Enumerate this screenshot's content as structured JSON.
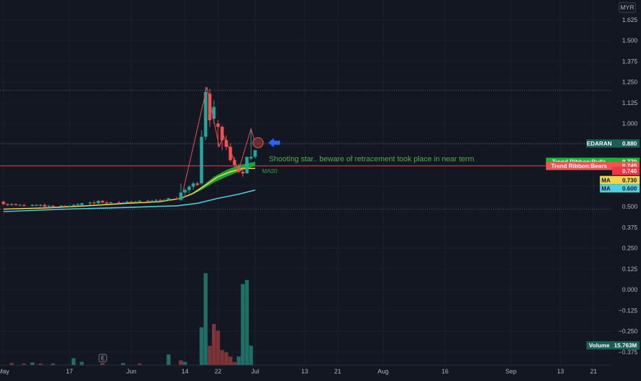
{
  "currency": "MYR",
  "colors": {
    "background": "#131722",
    "up": "#26a69a",
    "down": "#ef5350",
    "ribbon": "#1bb33a",
    "ma20": "#f0d44a",
    "ma": "#4dd0e1",
    "annotation": "#4caf50",
    "arrow": "#2962ff",
    "hline": "#f23645",
    "vol_up": "#1f6e68",
    "vol_down": "#7f3438"
  },
  "chart_data": {
    "type": "candlestick",
    "symbol": "EDARAN",
    "y_ticks": [
      1.625,
      1.5,
      1.375,
      1.25,
      1.125,
      1.0,
      0.875,
      0.75,
      0.625,
      0.5,
      0.375,
      0.25,
      0.125,
      0.0,
      -0.125,
      -0.25,
      -0.375
    ],
    "y_tick_labels": [
      "1.625",
      "1.500",
      "1.375",
      "1.250",
      "1.125",
      "1.000",
      "0.875",
      "0.750",
      "0.625",
      "0.500",
      "0.375",
      "0.250",
      "0.125",
      "0.000",
      "−0.125",
      "−0.250",
      "−0.375"
    ],
    "x_ticks": [
      {
        "label": "May",
        "day": 0
      },
      {
        "label": "17",
        "day": 16
      },
      {
        "label": "Jun",
        "day": 31
      },
      {
        "label": "14",
        "day": 44
      },
      {
        "label": "22",
        "day": 52
      },
      {
        "label": "Jul",
        "day": 61
      },
      {
        "label": "13",
        "day": 73
      },
      {
        "label": "21",
        "day": 81
      },
      {
        "label": "Aug",
        "day": 92
      },
      {
        "label": "16",
        "day": 107
      },
      {
        "label": "Sep",
        "day": 123
      },
      {
        "label": "13",
        "day": 135
      },
      {
        "label": "21",
        "day": 143
      }
    ],
    "candles": [
      {
        "day": 0,
        "o": 0.53,
        "h": 0.535,
        "l": 0.51,
        "c": 0.515
      },
      {
        "day": 1,
        "o": 0.515,
        "h": 0.52,
        "l": 0.505,
        "c": 0.51
      },
      {
        "day": 2,
        "o": 0.51,
        "h": 0.52,
        "l": 0.505,
        "c": 0.515
      },
      {
        "day": 3,
        "o": 0.515,
        "h": 0.52,
        "l": 0.505,
        "c": 0.51
      },
      {
        "day": 4,
        "o": 0.51,
        "h": 0.515,
        "l": 0.505,
        "c": 0.51
      },
      {
        "day": 5,
        "o": 0.51,
        "h": 0.515,
        "l": 0.5,
        "c": 0.505
      },
      {
        "day": 7,
        "o": 0.505,
        "h": 0.515,
        "l": 0.5,
        "c": 0.51
      },
      {
        "day": 8,
        "o": 0.51,
        "h": 0.515,
        "l": 0.505,
        "c": 0.505
      },
      {
        "day": 9,
        "o": 0.505,
        "h": 0.515,
        "l": 0.5,
        "c": 0.51
      },
      {
        "day": 10,
        "o": 0.51,
        "h": 0.52,
        "l": 0.495,
        "c": 0.5
      },
      {
        "day": 11,
        "o": 0.5,
        "h": 0.51,
        "l": 0.495,
        "c": 0.505
      },
      {
        "day": 12,
        "o": 0.505,
        "h": 0.51,
        "l": 0.495,
        "c": 0.5
      },
      {
        "day": 14,
        "o": 0.5,
        "h": 0.51,
        "l": 0.49,
        "c": 0.505
      },
      {
        "day": 15,
        "o": 0.505,
        "h": 0.51,
        "l": 0.495,
        "c": 0.5
      },
      {
        "day": 16,
        "o": 0.5,
        "h": 0.51,
        "l": 0.495,
        "c": 0.505
      },
      {
        "day": 17,
        "o": 0.505,
        "h": 0.515,
        "l": 0.5,
        "c": 0.51
      },
      {
        "day": 18,
        "o": 0.51,
        "h": 0.52,
        "l": 0.505,
        "c": 0.515
      },
      {
        "day": 19,
        "o": 0.51,
        "h": 0.525,
        "l": 0.505,
        "c": 0.52
      },
      {
        "day": 21,
        "o": 0.52,
        "h": 0.53,
        "l": 0.51,
        "c": 0.525
      },
      {
        "day": 22,
        "o": 0.525,
        "h": 0.535,
        "l": 0.515,
        "c": 0.52
      },
      {
        "day": 23,
        "o": 0.52,
        "h": 0.54,
        "l": 0.515,
        "c": 0.535
      },
      {
        "day": 24,
        "o": 0.535,
        "h": 0.54,
        "l": 0.52,
        "c": 0.525
      },
      {
        "day": 25,
        "o": 0.525,
        "h": 0.535,
        "l": 0.515,
        "c": 0.52
      },
      {
        "day": 26,
        "o": 0.52,
        "h": 0.53,
        "l": 0.515,
        "c": 0.525
      },
      {
        "day": 28,
        "o": 0.525,
        "h": 0.535,
        "l": 0.515,
        "c": 0.52
      },
      {
        "day": 29,
        "o": 0.52,
        "h": 0.53,
        "l": 0.515,
        "c": 0.525
      },
      {
        "day": 30,
        "o": 0.525,
        "h": 0.535,
        "l": 0.52,
        "c": 0.53
      },
      {
        "day": 31,
        "o": 0.53,
        "h": 0.535,
        "l": 0.52,
        "c": 0.525
      },
      {
        "day": 32,
        "o": 0.525,
        "h": 0.535,
        "l": 0.52,
        "c": 0.53
      },
      {
        "day": 33,
        "o": 0.53,
        "h": 0.54,
        "l": 0.525,
        "c": 0.535
      },
      {
        "day": 35,
        "o": 0.535,
        "h": 0.54,
        "l": 0.525,
        "c": 0.53
      },
      {
        "day": 36,
        "o": 0.53,
        "h": 0.54,
        "l": 0.525,
        "c": 0.535
      },
      {
        "day": 37,
        "o": 0.535,
        "h": 0.545,
        "l": 0.53,
        "c": 0.54
      },
      {
        "day": 38,
        "o": 0.54,
        "h": 0.545,
        "l": 0.53,
        "c": 0.535
      },
      {
        "day": 39,
        "o": 0.535,
        "h": 0.545,
        "l": 0.53,
        "c": 0.54
      },
      {
        "day": 40,
        "o": 0.54,
        "h": 0.555,
        "l": 0.535,
        "c": 0.55
      },
      {
        "day": 42,
        "o": 0.55,
        "h": 0.56,
        "l": 0.54,
        "c": 0.545
      },
      {
        "day": 43,
        "o": 0.54,
        "h": 0.64,
        "l": 0.535,
        "c": 0.585
      },
      {
        "day": 44,
        "o": 0.585,
        "h": 0.61,
        "l": 0.56,
        "c": 0.6
      },
      {
        "day": 45,
        "o": 0.6,
        "h": 0.63,
        "l": 0.58,
        "c": 0.62
      },
      {
        "day": 46,
        "o": 0.62,
        "h": 0.65,
        "l": 0.6,
        "c": 0.64
      },
      {
        "day": 47,
        "o": 0.64,
        "h": 0.65,
        "l": 0.625,
        "c": 0.63
      },
      {
        "day": 48,
        "o": 0.64,
        "h": 0.96,
        "l": 0.63,
        "c": 0.92
      },
      {
        "day": 49,
        "o": 0.92,
        "h": 1.22,
        "l": 0.9,
        "c": 1.19
      },
      {
        "day": 50,
        "o": 1.18,
        "h": 1.21,
        "l": 0.98,
        "c": 1.02
      },
      {
        "day": 51,
        "o": 1.03,
        "h": 1.14,
        "l": 1.0,
        "c": 1.1
      },
      {
        "day": 52,
        "o": 1.0,
        "h": 1.02,
        "l": 0.86,
        "c": 0.98
      },
      {
        "day": 53,
        "o": 0.98,
        "h": 0.99,
        "l": 0.84,
        "c": 0.9
      },
      {
        "day": 54,
        "o": 0.9,
        "h": 0.93,
        "l": 0.84,
        "c": 0.86
      },
      {
        "day": 55,
        "o": 0.86,
        "h": 0.88,
        "l": 0.77,
        "c": 0.78
      },
      {
        "day": 56,
        "o": 0.78,
        "h": 0.8,
        "l": 0.74,
        "c": 0.75
      },
      {
        "day": 57,
        "o": 0.74,
        "h": 0.76,
        "l": 0.7,
        "c": 0.71
      },
      {
        "day": 58,
        "o": 0.71,
        "h": 0.74,
        "l": 0.68,
        "c": 0.7
      },
      {
        "day": 59,
        "o": 0.7,
        "h": 0.8,
        "l": 0.7,
        "c": 0.8
      },
      {
        "day": 60,
        "o": 0.79,
        "h": 0.96,
        "l": 0.78,
        "c": 0.8
      },
      {
        "day": 61,
        "o": 0.8,
        "h": 0.84,
        "l": 0.79,
        "c": 0.84
      }
    ],
    "ma20": [
      {
        "day": 0,
        "v": 0.485
      },
      {
        "day": 10,
        "v": 0.492
      },
      {
        "day": 20,
        "v": 0.505
      },
      {
        "day": 30,
        "v": 0.52
      },
      {
        "day": 38,
        "v": 0.53
      },
      {
        "day": 43,
        "v": 0.55
      },
      {
        "day": 46,
        "v": 0.58
      },
      {
        "day": 49,
        "v": 0.63
      },
      {
        "day": 52,
        "v": 0.68
      },
      {
        "day": 55,
        "v": 0.71
      },
      {
        "day": 58,
        "v": 0.73
      },
      {
        "day": 61,
        "v": 0.73
      }
    ],
    "ma": [
      {
        "day": 0,
        "v": 0.47
      },
      {
        "day": 15,
        "v": 0.485
      },
      {
        "day": 30,
        "v": 0.495
      },
      {
        "day": 42,
        "v": 0.505
      },
      {
        "day": 47,
        "v": 0.52
      },
      {
        "day": 52,
        "v": 0.55
      },
      {
        "day": 57,
        "v": 0.575
      },
      {
        "day": 61,
        "v": 0.6
      }
    ],
    "ribbon_upper": [
      {
        "day": 45,
        "v": 0.57
      },
      {
        "day": 48,
        "v": 0.62
      },
      {
        "day": 51,
        "v": 0.68
      },
      {
        "day": 54,
        "v": 0.72
      },
      {
        "day": 57,
        "v": 0.75
      },
      {
        "day": 59,
        "v": 0.76
      },
      {
        "day": 61,
        "v": 0.77
      }
    ],
    "ribbon_lower": [
      {
        "day": 45,
        "v": 0.565
      },
      {
        "day": 48,
        "v": 0.6
      },
      {
        "day": 51,
        "v": 0.645
      },
      {
        "day": 54,
        "v": 0.68
      },
      {
        "day": 57,
        "v": 0.71
      },
      {
        "day": 59,
        "v": 0.73
      },
      {
        "day": 61,
        "v": 0.745
      }
    ],
    "volume": [
      {
        "day": 2,
        "v": 0.4,
        "up": false
      },
      {
        "day": 5,
        "v": 0.3,
        "up": false
      },
      {
        "day": 7,
        "v": 0.5,
        "up": true
      },
      {
        "day": 9,
        "v": 0.3,
        "up": false
      },
      {
        "day": 12,
        "v": 0.3,
        "up": true
      },
      {
        "day": 17,
        "v": 1.3,
        "up": true
      },
      {
        "day": 19,
        "v": 0.6,
        "up": true
      },
      {
        "day": 24,
        "v": 0.4,
        "up": false
      },
      {
        "day": 29,
        "v": 0.4,
        "up": true
      },
      {
        "day": 33,
        "v": 0.3,
        "up": false
      },
      {
        "day": 40,
        "v": 2.0,
        "up": true
      },
      {
        "day": 43,
        "v": 0.9,
        "up": false
      },
      {
        "day": 44,
        "v": 0.6,
        "up": true
      },
      {
        "day": 48,
        "v": 7.0,
        "up": true
      },
      {
        "day": 49,
        "v": 17.0,
        "up": true
      },
      {
        "day": 50,
        "v": 3.6,
        "up": false
      },
      {
        "day": 51,
        "v": 7.6,
        "up": false
      },
      {
        "day": 52,
        "v": 6.4,
        "up": false
      },
      {
        "day": 53,
        "v": 2.8,
        "up": false
      },
      {
        "day": 54,
        "v": 2.4,
        "up": false
      },
      {
        "day": 55,
        "v": 1.6,
        "up": false
      },
      {
        "day": 56,
        "v": 0.6,
        "up": false
      },
      {
        "day": 57,
        "v": 1.6,
        "up": true
      },
      {
        "day": 58,
        "v": 15.0,
        "up": true
      },
      {
        "day": 59,
        "v": 15.763,
        "up": true
      },
      {
        "day": 60,
        "v": 3.6,
        "up": true
      }
    ],
    "horizontal_lines": [
      {
        "value": 0.745,
        "style": "solid"
      },
      {
        "value": 1.2,
        "style": "dotted"
      },
      {
        "value": 0.88,
        "style": "dotted"
      },
      {
        "value": 0.485,
        "style": "dotted"
      }
    ],
    "price_tags": [
      {
        "label": "EDARAN",
        "value": "0.880",
        "y": 0.88,
        "bg": "#1b5e57",
        "fg": "#ffffff"
      },
      {
        "label": "Trend Ribbon:Bulls",
        "value": "0.770",
        "y": 0.77,
        "bg": "#1bb33a",
        "fg": "#ffffff"
      },
      {
        "label": "Trend Ribbon:Bears",
        "value": "0.745",
        "y": 0.745,
        "bg": "#ef5350",
        "fg": "#ffffff"
      },
      {
        "label": "",
        "value": "0.740",
        "y": 0.715,
        "bg": "#f23645",
        "fg": "#ffffff"
      },
      {
        "label": "MA",
        "value": "0.730",
        "y": 0.66,
        "bg": "#f0d44a",
        "fg": "#131722"
      },
      {
        "label": "MA",
        "value": "0.600",
        "y": 0.61,
        "bg": "#4dd0e1",
        "fg": "#131722"
      },
      {
        "label": "Volume",
        "value": "15.763M",
        "y": -0.335,
        "bg": "#1b5e57",
        "fg": "#ffffff"
      }
    ],
    "annotations": {
      "note": "Shooting star.. beware of retracement took place in near term",
      "ma20_label": "MA20",
      "events_marker": "E"
    }
  }
}
